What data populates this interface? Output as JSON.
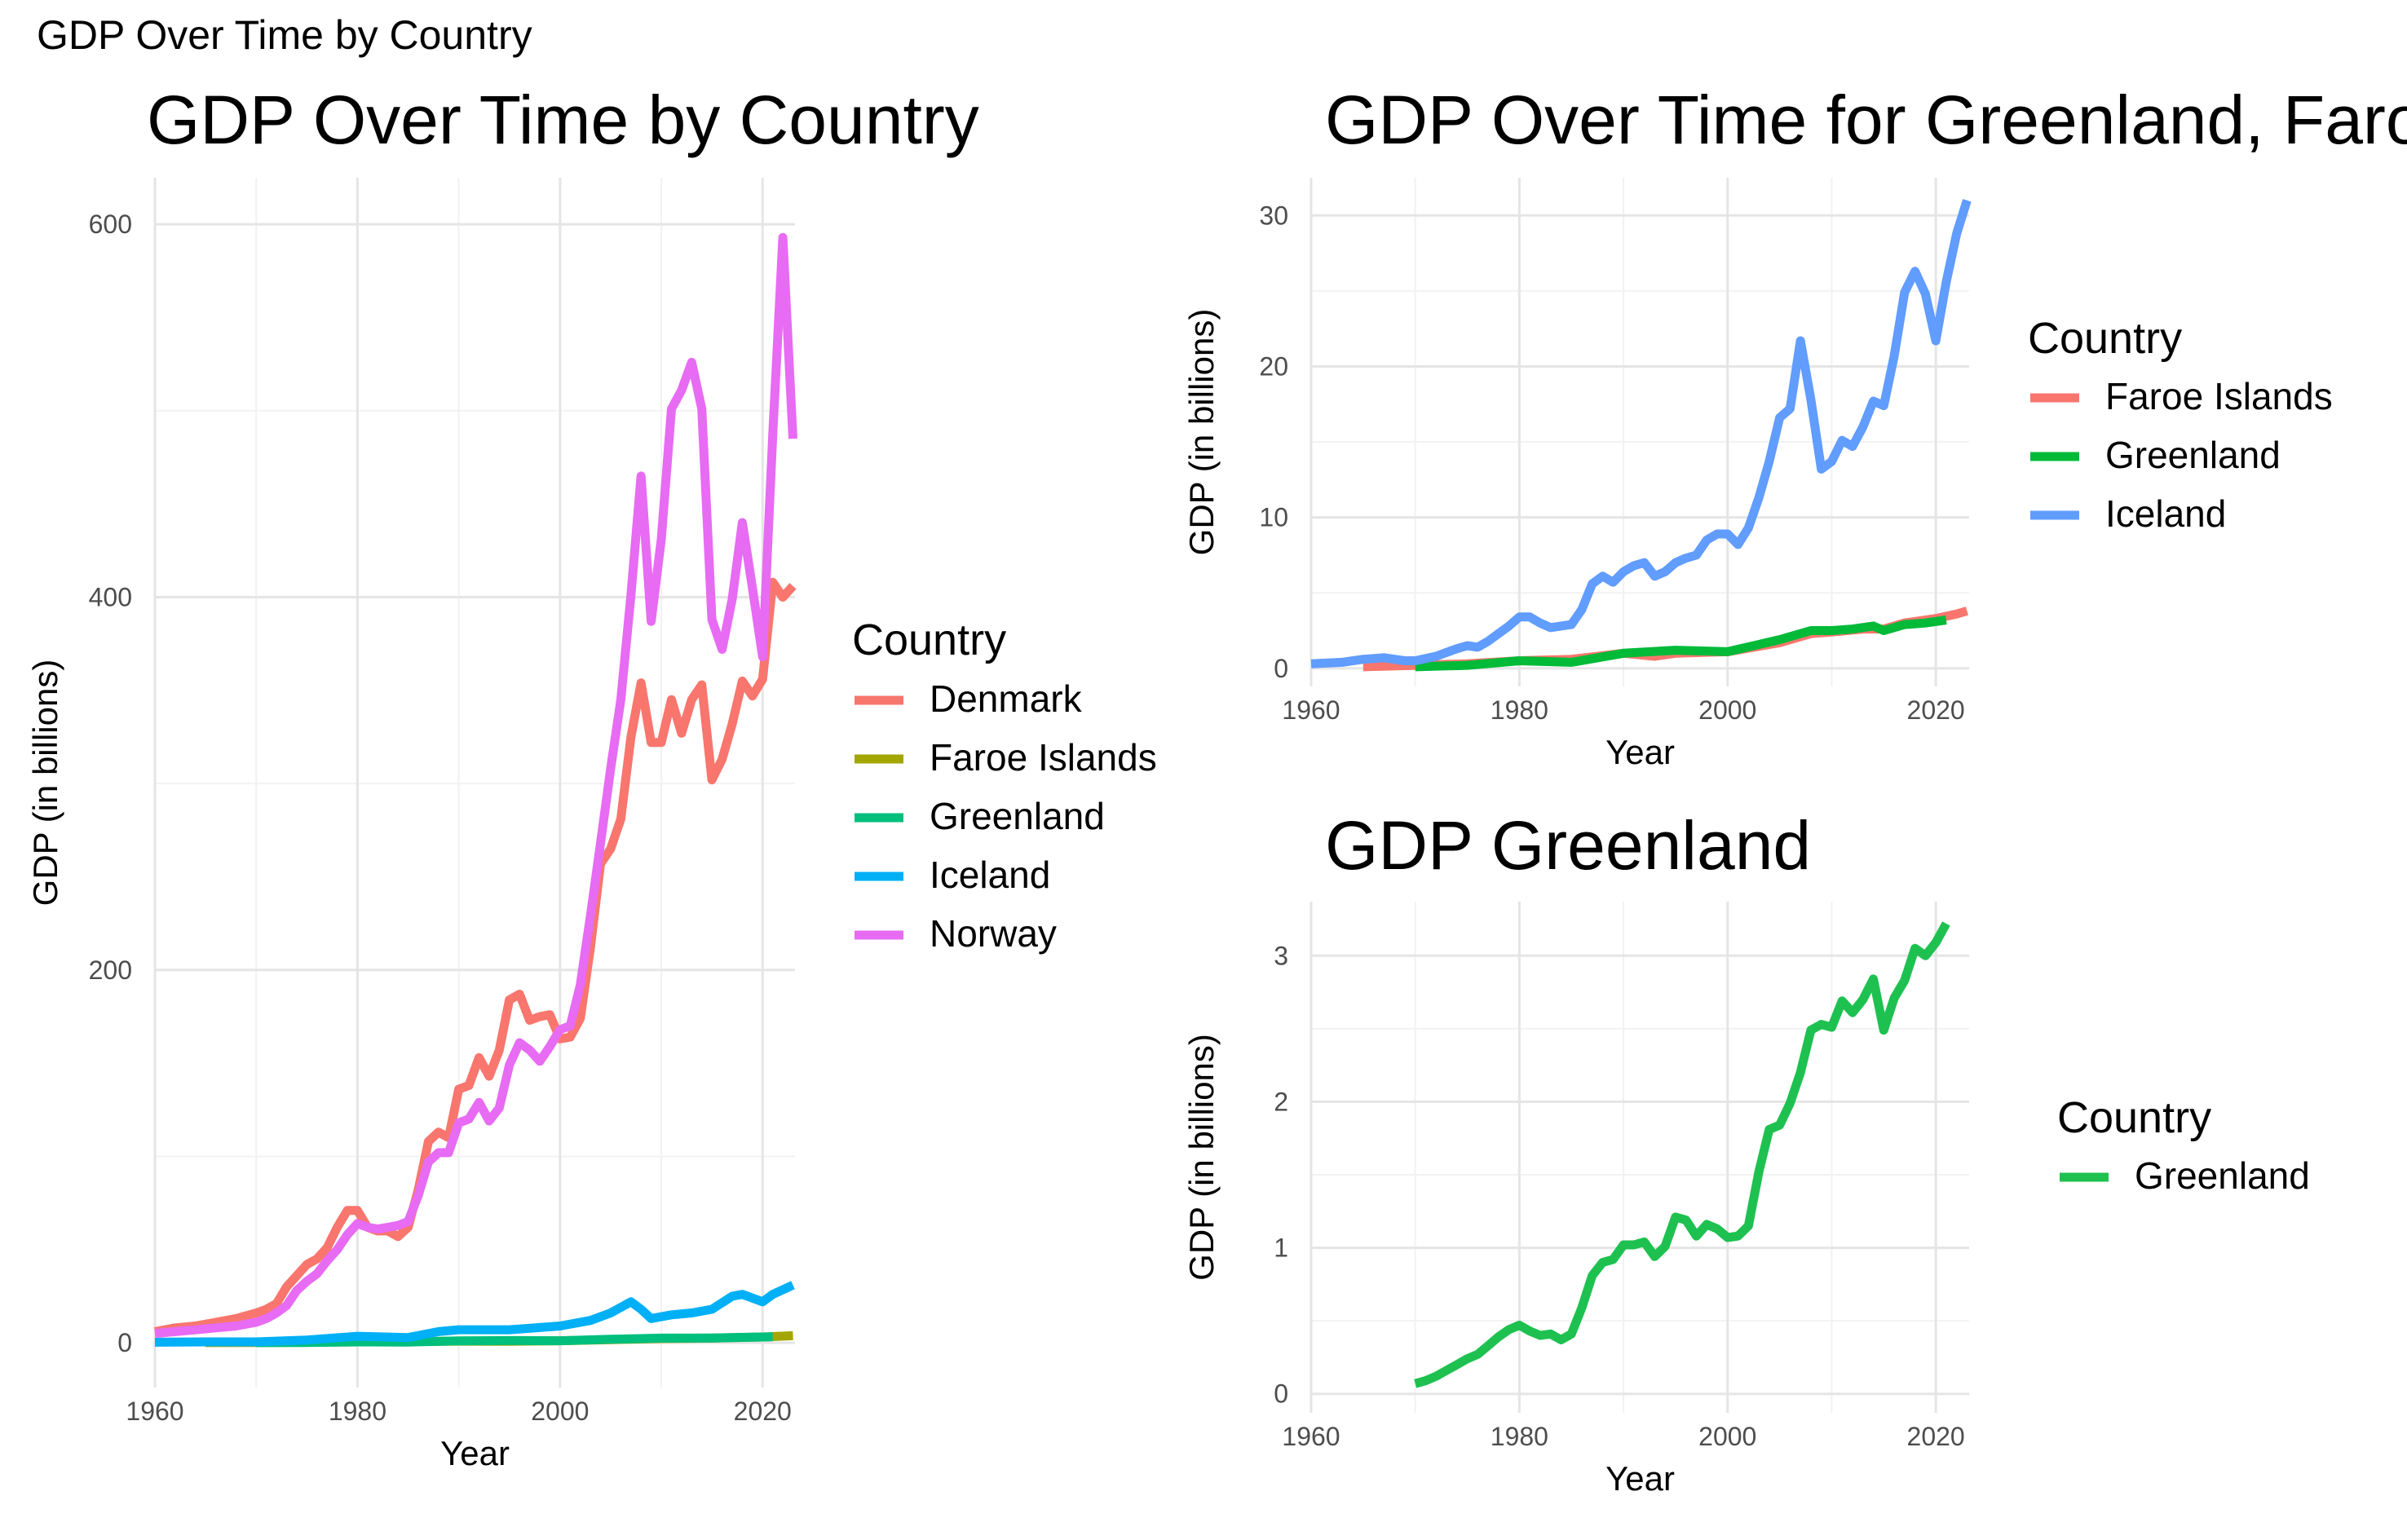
{
  "page_title": "GDP Over Time by Country",
  "chart_data": [
    {
      "type": "line",
      "title": "GDP Over Time by Country",
      "xlabel": "Year",
      "ylabel": "GDP (in billions)",
      "xlim": [
        1960,
        2023
      ],
      "ylim": [
        0,
        600
      ],
      "x_ticks": [
        1960,
        1980,
        2000,
        2020
      ],
      "y_ticks": [
        0,
        200,
        400,
        600
      ],
      "grid": true,
      "legend": {
        "title": "Country",
        "position": "right"
      },
      "series": [
        {
          "name": "Denmark",
          "color": "#F8766D",
          "x": [
            1960,
            1962,
            1964,
            1966,
            1968,
            1970,
            1971,
            1972,
            1973,
            1974,
            1975,
            1976,
            1977,
            1978,
            1979,
            1980,
            1981,
            1982,
            1983,
            1984,
            1985,
            1986,
            1987,
            1988,
            1989,
            1990,
            1991,
            1992,
            1993,
            1994,
            1995,
            1996,
            1997,
            1998,
            1999,
            2000,
            2001,
            2002,
            2003,
            2004,
            2005,
            2006,
            2007,
            2008,
            2009,
            2010,
            2011,
            2012,
            2013,
            2014,
            2015,
            2016,
            2017,
            2018,
            2019,
            2020,
            2021,
            2022,
            2023
          ],
          "y": [
            6,
            8,
            9,
            11,
            13,
            16,
            18,
            21,
            30,
            36,
            42,
            45,
            51,
            62,
            71,
            71,
            62,
            60,
            60,
            57,
            62,
            82,
            108,
            113,
            110,
            136,
            138,
            153,
            143,
            157,
            184,
            187,
            173,
            175,
            176,
            163,
            164,
            174,
            212,
            257,
            265,
            281,
            325,
            354,
            322,
            322,
            345,
            327,
            345,
            353,
            302,
            313,
            332,
            355,
            347,
            356,
            408,
            400,
            406
          ]
        },
        {
          "name": "Faroe Islands",
          "color": "#A3A500",
          "x": [
            1965,
            1970,
            1975,
            1980,
            1985,
            1990,
            1995,
            2000,
            2005,
            2010,
            2015,
            2020,
            2023
          ],
          "y": [
            0.1,
            0.2,
            0.3,
            0.5,
            0.6,
            0.9,
            0.8,
            1.1,
            1.7,
            2.3,
            2.5,
            3.1,
            3.8
          ]
        },
        {
          "name": "Greenland",
          "color": "#00BF7D",
          "x": [
            1970,
            1975,
            1980,
            1985,
            1990,
            1995,
            2000,
            2005,
            2010,
            2015,
            2021
          ],
          "y": [
            0.1,
            0.2,
            0.5,
            0.4,
            1.0,
            1.2,
            1.1,
            1.9,
            2.5,
            2.6,
            3.2
          ]
        },
        {
          "name": "Iceland",
          "color": "#00B0F6",
          "x": [
            1960,
            1965,
            1970,
            1975,
            1980,
            1985,
            1988,
            1990,
            1995,
            2000,
            2003,
            2005,
            2007,
            2008,
            2009,
            2011,
            2013,
            2015,
            2017,
            2018,
            2020,
            2021,
            2023
          ],
          "y": [
            0.3,
            0.5,
            0.5,
            1.5,
            3.5,
            2.8,
            6,
            7,
            7,
            9,
            12,
            16,
            22,
            18,
            13,
            15,
            16,
            18,
            25,
            26,
            22,
            26,
            31
          ]
        },
        {
          "name": "Norway",
          "color": "#E76BF3",
          "x": [
            1960,
            1962,
            1964,
            1966,
            1968,
            1970,
            1971,
            1972,
            1973,
            1974,
            1975,
            1976,
            1977,
            1978,
            1979,
            1980,
            1981,
            1982,
            1983,
            1984,
            1985,
            1986,
            1987,
            1988,
            1989,
            1990,
            1991,
            1992,
            1993,
            1994,
            1995,
            1996,
            1997,
            1998,
            1999,
            2000,
            2001,
            2002,
            2003,
            2004,
            2005,
            2006,
            2007,
            2008,
            2009,
            2010,
            2011,
            2012,
            2013,
            2014,
            2015,
            2016,
            2017,
            2018,
            2019,
            2020,
            2021,
            2022,
            2023
          ],
          "y": [
            5,
            6,
            7,
            8,
            9,
            11,
            13,
            16,
            20,
            28,
            33,
            37,
            44,
            50,
            58,
            64,
            62,
            61,
            62,
            63,
            65,
            79,
            97,
            102,
            102,
            118,
            120,
            129,
            119,
            126,
            149,
            161,
            157,
            151,
            159,
            168,
            170,
            192,
            229,
            268,
            308,
            345,
            401,
            465,
            387,
            431,
            501,
            511,
            526,
            501,
            388,
            372,
            399,
            440,
            405,
            368,
            487,
            593,
            485
          ]
        }
      ]
    },
    {
      "type": "line",
      "title": "GDP Over Time for Greenland, Faro",
      "xlabel": "Year",
      "ylabel": "GDP (in billions)",
      "xlim": [
        1960,
        2023
      ],
      "ylim": [
        0,
        31
      ],
      "x_ticks": [
        1960,
        1980,
        2000,
        2020
      ],
      "y_ticks": [
        0,
        10,
        20,
        30
      ],
      "grid": true,
      "legend": {
        "title": "Country",
        "position": "right"
      },
      "series": [
        {
          "name": "Faroe Islands",
          "color": "#F8766D",
          "x": [
            1965,
            1970,
            1975,
            1980,
            1985,
            1990,
            1993,
            1995,
            2000,
            2005,
            2008,
            2010,
            2013,
            2015,
            2017,
            2020,
            2022,
            2023
          ],
          "y": [
            0.1,
            0.2,
            0.3,
            0.5,
            0.6,
            1.0,
            0.8,
            1.0,
            1.1,
            1.7,
            2.3,
            2.4,
            2.6,
            2.6,
            3.0,
            3.3,
            3.6,
            3.8
          ]
        },
        {
          "name": "Greenland",
          "color": "#00BA38",
          "x": [
            1970,
            1975,
            1980,
            1985,
            1990,
            1995,
            2000,
            2005,
            2008,
            2010,
            2012,
            2014,
            2015,
            2017,
            2019,
            2021
          ],
          "y": [
            0.1,
            0.2,
            0.5,
            0.4,
            1.0,
            1.2,
            1.1,
            1.9,
            2.5,
            2.5,
            2.6,
            2.8,
            2.5,
            2.9,
            3.0,
            3.2
          ]
        },
        {
          "name": "Iceland",
          "color": "#619CFF",
          "x": [
            1960,
            1963,
            1965,
            1967,
            1969,
            1970,
            1972,
            1974,
            1975,
            1976,
            1977,
            1978,
            1979,
            1980,
            1981,
            1982,
            1983,
            1985,
            1986,
            1987,
            1988,
            1989,
            1990,
            1991,
            1992,
            1993,
            1994,
            1995,
            1996,
            1997,
            1998,
            1999,
            2000,
            2001,
            2002,
            2003,
            2004,
            2005,
            2006,
            2007,
            2008,
            2009,
            2010,
            2011,
            2012,
            2013,
            2014,
            2015,
            2016,
            2017,
            2018,
            2019,
            2020,
            2021,
            2022,
            2023
          ],
          "y": [
            0.3,
            0.4,
            0.6,
            0.7,
            0.5,
            0.5,
            0.8,
            1.3,
            1.5,
            1.4,
            1.8,
            2.3,
            2.8,
            3.4,
            3.4,
            3.0,
            2.7,
            2.9,
            3.9,
            5.6,
            6.1,
            5.7,
            6.4,
            6.8,
            7.0,
            6.1,
            6.4,
            7.0,
            7.3,
            7.5,
            8.5,
            8.9,
            8.9,
            8.2,
            9.3,
            11.3,
            13.7,
            16.6,
            17.2,
            21.7,
            17.8,
            13.2,
            13.7,
            15.1,
            14.7,
            16.0,
            17.7,
            17.4,
            20.7,
            24.9,
            26.3,
            24.8,
            21.7,
            25.6,
            28.8,
            31.0
          ]
        }
      ]
    },
    {
      "type": "line",
      "title": "GDP Greenland",
      "xlabel": "Year",
      "ylabel": "GDP (in billions)",
      "xlim": [
        1960,
        2023
      ],
      "ylim": [
        0,
        3.25
      ],
      "x_ticks": [
        1960,
        1980,
        2000,
        2020
      ],
      "y_ticks": [
        0,
        1,
        2,
        3
      ],
      "grid": true,
      "legend": {
        "title": "Country",
        "position": "right"
      },
      "series": [
        {
          "name": "Greenland",
          "color": "#1EC150",
          "x": [
            1970,
            1971,
            1972,
            1973,
            1974,
            1975,
            1976,
            1977,
            1978,
            1979,
            1980,
            1981,
            1982,
            1983,
            1984,
            1985,
            1986,
            1987,
            1988,
            1989,
            1990,
            1991,
            1992,
            1993,
            1994,
            1995,
            1996,
            1997,
            1998,
            1999,
            2000,
            2001,
            2002,
            2003,
            2004,
            2005,
            2006,
            2007,
            2008,
            2009,
            2010,
            2011,
            2012,
            2013,
            2014,
            2015,
            2016,
            2017,
            2018,
            2019,
            2020,
            2021
          ],
          "y": [
            0.07,
            0.09,
            0.12,
            0.16,
            0.2,
            0.24,
            0.27,
            0.33,
            0.39,
            0.44,
            0.47,
            0.43,
            0.4,
            0.41,
            0.37,
            0.41,
            0.59,
            0.81,
            0.9,
            0.92,
            1.02,
            1.02,
            1.04,
            0.94,
            1.01,
            1.21,
            1.19,
            1.08,
            1.16,
            1.13,
            1.07,
            1.08,
            1.15,
            1.52,
            1.81,
            1.84,
            1.99,
            2.2,
            2.49,
            2.53,
            2.51,
            2.69,
            2.61,
            2.7,
            2.84,
            2.49,
            2.71,
            2.83,
            3.05,
            3.0,
            3.09,
            3.22
          ]
        }
      ]
    }
  ]
}
